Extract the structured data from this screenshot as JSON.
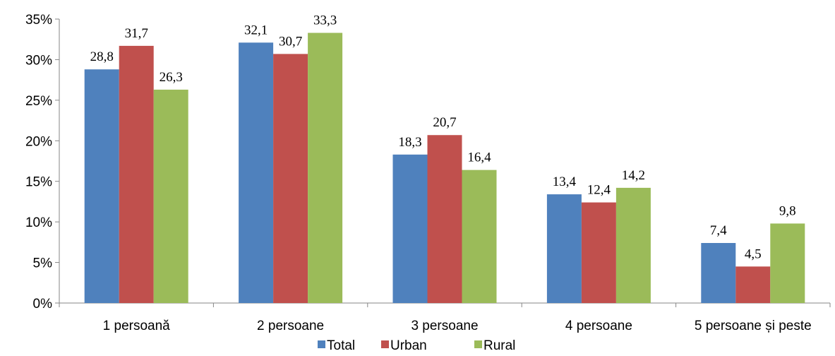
{
  "chart_data": {
    "type": "bar",
    "categories": [
      "1 persoană",
      "2 persoane",
      "3 persoane",
      "4 persoane",
      "5 persoane și peste"
    ],
    "series": [
      {
        "name": "Total",
        "color": "#4F81BD",
        "values": [
          28.8,
          32.1,
          18.3,
          13.4,
          7.4
        ],
        "labels": [
          "28,8",
          "32,1",
          "18,3",
          "13,4",
          "7,4"
        ]
      },
      {
        "name": "Urban",
        "color": "#C0504D",
        "values": [
          31.7,
          30.7,
          20.7,
          12.4,
          4.5
        ],
        "labels": [
          "31,7",
          "30,7",
          "20,7",
          "12,4",
          "4,5"
        ]
      },
      {
        "name": "Rural",
        "color": "#9BBB59",
        "values": [
          26.3,
          33.3,
          16.4,
          14.2,
          9.8
        ],
        "labels": [
          "26,3",
          "33,3",
          "16,4",
          "14,2",
          "9,8"
        ]
      }
    ],
    "y_ticks": [
      0,
      5,
      10,
      15,
      20,
      25,
      30,
      35
    ],
    "y_tick_labels": [
      "0%",
      "5%",
      "10%",
      "15%",
      "20%",
      "25%",
      "30%",
      "35%"
    ],
    "ylim": [
      0,
      35
    ],
    "grid": false,
    "legend_position": "bottom-center"
  }
}
